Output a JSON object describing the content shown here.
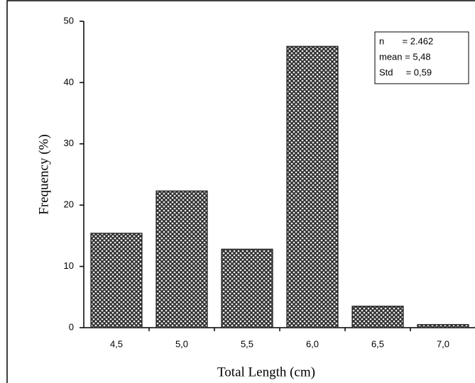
{
  "chart_data": {
    "type": "bar",
    "x_label": "Total Length (cm)",
    "y_label": "Frequency (%)",
    "categories": [
      "4,5",
      "5,0",
      "5,5",
      "6,0",
      "6,5",
      "7,0"
    ],
    "values": [
      15.4,
      22.3,
      12.8,
      45.9,
      3.5,
      0.5
    ],
    "color": "#2b2b2b",
    "ylim": [
      0,
      50
    ],
    "yticks": [
      0,
      10,
      20,
      30,
      40,
      50
    ],
    "grid": false,
    "annotations": [
      "n       = 2.462",
      "mean = 5,48",
      "Std     = 0,59"
    ]
  }
}
